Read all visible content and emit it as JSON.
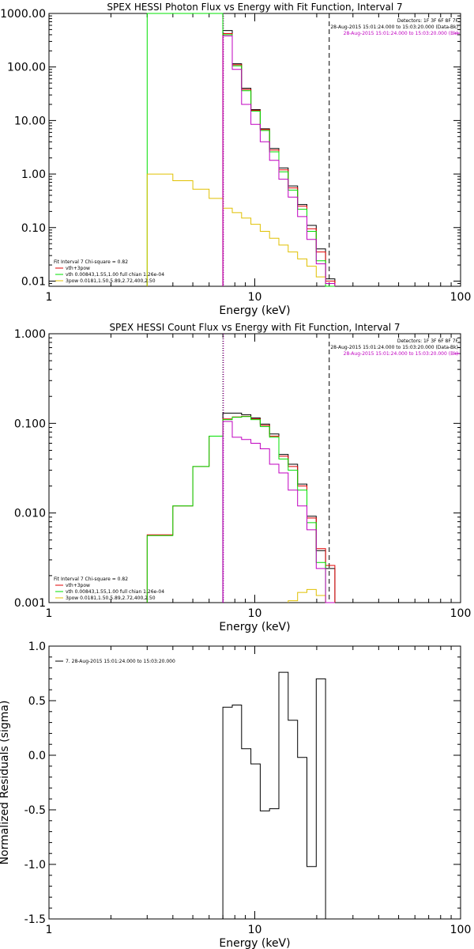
{
  "panels": [
    {
      "title": "SPEX HESSI Photon Flux vs Energy with Fit Function, Interval 7",
      "xlabel": "Energy (keV)",
      "ylabel": "",
      "info_lines": [
        "Detectors: 1F 3F 6F 8F 7F",
        "28-Aug-2015 15:01:24.000 to 15:03:20.000 (Data-Bk)",
        "28-Aug-2015 15:01:24.000 to 15:03:20.000 (Bk)"
      ],
      "info_colors": [
        "#000000",
        "#000000",
        "#c000c0"
      ],
      "legend": [
        {
          "text": "Fit Interval 7   Chi-square = 0.82",
          "color": "#000000",
          "line": false
        },
        {
          "text": "vth+3pow",
          "color": "#e00000",
          "line": true
        },
        {
          "text": "vth 0.00843,1.55,1.00  full chian 1.26e-04",
          "color": "#00e000",
          "line": true
        },
        {
          "text": "3pow 0.0181,1.50,5.89,2.72,400,2.50",
          "color": "#e0c000",
          "line": true
        }
      ]
    },
    {
      "title": "SPEX HESSI Count Flux vs Energy with Fit Function, Interval 7",
      "xlabel": "Energy (keV)",
      "ylabel": "",
      "info_lines": [
        "Detectors: 1F 3F 6F 8F 7F",
        "28-Aug-2015 15:01:24.000 to 15:03:20.000 (Data-Bk)",
        "28-Aug-2015 15:01:24.000 to 15:03:20.000 (Bk)"
      ],
      "info_colors": [
        "#000000",
        "#000000",
        "#c000c0"
      ],
      "legend": [
        {
          "text": "Fit Interval 7   Chi-square = 0.82",
          "color": "#000000",
          "line": false
        },
        {
          "text": "vth+3pow",
          "color": "#e00000",
          "line": true
        },
        {
          "text": "vth 0.00843,1.55,1.00  full chian 1.26e-04",
          "color": "#00e000",
          "line": true
        },
        {
          "text": "3pow 0.0181,1.50,5.89,2.72,400,2.50",
          "color": "#e0c000",
          "line": true
        }
      ]
    },
    {
      "title": "",
      "xlabel": "Energy (keV)",
      "ylabel": "Normalized Residuals (sigma)",
      "info_lines": [],
      "info_colors": [],
      "legend": [
        {
          "text": "7. 28-Aug-2015 15:01:24.000 to 15:03:20.000",
          "color": "#000000",
          "line": true
        }
      ]
    }
  ],
  "chart_data": [
    {
      "type": "line",
      "title": "SPEX HESSI Photon Flux vs Energy with Fit Function, Interval 7",
      "xlabel": "Energy (keV)",
      "ylabel": "",
      "xlog": true,
      "ylog": true,
      "xlim": [
        1,
        100
      ],
      "ylim": [
        0.008,
        1000
      ],
      "xticks": [
        1,
        10,
        100
      ],
      "xtick_labels": [
        "1",
        "10",
        "100"
      ],
      "yticks": [
        0.01,
        0.1,
        1,
        10,
        100,
        1000
      ],
      "ytick_labels": [
        "0.01",
        "0.10",
        "1.00",
        "10.00",
        "100.00",
        "1000.00"
      ],
      "vlines": [
        {
          "x": 7.0,
          "style": "dotted",
          "color": "#000000"
        },
        {
          "x": 7.05,
          "style": "dotted",
          "color": "#c000c0"
        },
        {
          "x": 23.0,
          "style": "dashed",
          "color": "#000000"
        }
      ],
      "edges": [
        3,
        4,
        5,
        6,
        7,
        7.77,
        8.63,
        9.58,
        10.63,
        11.8,
        13.1,
        14.54,
        16.14,
        17.92,
        19.89,
        22.08,
        24.5
      ],
      "series": [
        {
          "name": "Data-Bk",
          "color": "#000000",
          "values": [
            null,
            null,
            null,
            null,
            480,
            115,
            40,
            16,
            7,
            3.0,
            1.3,
            0.6,
            0.27,
            0.11,
            0.04,
            0.011
          ]
        },
        {
          "name": "vth+3pow",
          "color": "#e00000",
          "values": [
            null,
            null,
            null,
            null,
            420,
            110,
            38,
            15.5,
            6.8,
            2.8,
            1.2,
            0.55,
            0.25,
            0.095,
            0.035,
            0.01
          ]
        },
        {
          "name": "vth",
          "color": "#00e000",
          "values": [
            1000,
            1000,
            1000,
            1000,
            400,
            105,
            36,
            15,
            6.5,
            2.6,
            1.1,
            0.5,
            0.22,
            0.085,
            0.024,
            0.007
          ]
        },
        {
          "name": "3pow",
          "color": "#e0c000",
          "values": [
            1.0,
            0.75,
            0.52,
            0.35,
            0.23,
            0.19,
            0.15,
            0.115,
            0.085,
            0.063,
            0.047,
            0.035,
            0.026,
            0.019,
            0.012,
            0.009
          ]
        },
        {
          "name": "Bk",
          "color": "#c000c0",
          "values": [
            null,
            null,
            null,
            null,
            380,
            90,
            20,
            8.5,
            4.0,
            1.8,
            0.8,
            0.37,
            0.16,
            0.06,
            0.021,
            0.009
          ]
        }
      ]
    },
    {
      "type": "line",
      "title": "SPEX HESSI Count Flux vs Energy with Fit Function, Interval 7",
      "xlabel": "Energy (keV)",
      "ylabel": "",
      "xlog": true,
      "ylog": true,
      "xlim": [
        1,
        100
      ],
      "ylim": [
        0.001,
        1.0
      ],
      "xticks": [
        1,
        10,
        100
      ],
      "xtick_labels": [
        "1",
        "10",
        "100"
      ],
      "yticks": [
        0.001,
        0.01,
        0.1,
        1.0
      ],
      "ytick_labels": [
        "0.001",
        "0.010",
        "0.100",
        "1.000"
      ],
      "vlines": [
        {
          "x": 7.0,
          "style": "dotted",
          "color": "#000000"
        },
        {
          "x": 7.05,
          "style": "dotted",
          "color": "#c000c0"
        },
        {
          "x": 23.0,
          "style": "dashed",
          "color": "#000000"
        }
      ],
      "edges": [
        3,
        4,
        5,
        6,
        7,
        7.77,
        8.63,
        9.58,
        10.63,
        11.8,
        13.1,
        14.54,
        16.14,
        17.92,
        19.89,
        22.08,
        24.5
      ],
      "series": [
        {
          "name": "Data-Bk",
          "color": "#000000",
          "values": [
            null,
            null,
            null,
            null,
            0.13,
            0.13,
            0.125,
            0.115,
            0.098,
            0.076,
            0.045,
            0.035,
            0.021,
            0.0092,
            0.0038,
            0.0024
          ]
        },
        {
          "name": "vth+3pow",
          "color": "#e00000",
          "values": [
            0.0057,
            0.012,
            0.033,
            0.072,
            0.112,
            0.118,
            0.12,
            0.112,
            0.095,
            0.072,
            0.043,
            0.033,
            0.02,
            0.0088,
            0.004,
            0.0026
          ]
        },
        {
          "name": "vth",
          "color": "#00e000",
          "values": [
            0.0056,
            0.012,
            0.033,
            0.072,
            0.11,
            0.117,
            0.119,
            0.11,
            0.092,
            0.07,
            0.04,
            0.03,
            0.018,
            0.0078,
            0.0028,
            0.001
          ]
        },
        {
          "name": "3pow",
          "color": "#e0c000",
          "values": [
            null,
            null,
            null,
            null,
            null,
            null,
            null,
            null,
            null,
            null,
            null,
            0.00105,
            0.0013,
            0.0014,
            0.0012,
            0.001
          ]
        },
        {
          "name": "Bk",
          "color": "#c000c0",
          "values": [
            null,
            null,
            null,
            null,
            0.105,
            0.07,
            0.066,
            0.06,
            0.052,
            0.035,
            0.028,
            0.018,
            0.012,
            0.0065,
            0.0024,
            0.001
          ]
        }
      ]
    },
    {
      "type": "line",
      "title": "",
      "xlabel": "Energy (keV)",
      "ylabel": "Normalized Residuals (sigma)",
      "xlog": true,
      "ylog": false,
      "xlim": [
        1,
        100
      ],
      "ylim": [
        -1.5,
        1.0
      ],
      "xticks": [
        1,
        10,
        100
      ],
      "xtick_labels": [
        "1",
        "10",
        "100"
      ],
      "yticks": [
        -1.5,
        -1.0,
        -0.5,
        0.0,
        0.5,
        1.0
      ],
      "ytick_labels": [
        "-1.5",
        "-1.0",
        "-0.5",
        "0.0",
        "0.5",
        "1.0"
      ],
      "vlines": [],
      "edges": [
        7,
        7.77,
        8.63,
        9.58,
        10.63,
        11.8,
        13.1,
        14.54,
        16.14,
        17.92,
        19.89,
        22.08
      ],
      "series": [
        {
          "name": "7. 28-Aug-2015 15:01:24.000 to 15:03:20.000",
          "color": "#000000",
          "values": [
            0.44,
            0.46,
            0.06,
            -0.08,
            -0.51,
            -0.49,
            0.76,
            0.32,
            -0.02,
            -1.02,
            0.7
          ]
        }
      ]
    }
  ]
}
